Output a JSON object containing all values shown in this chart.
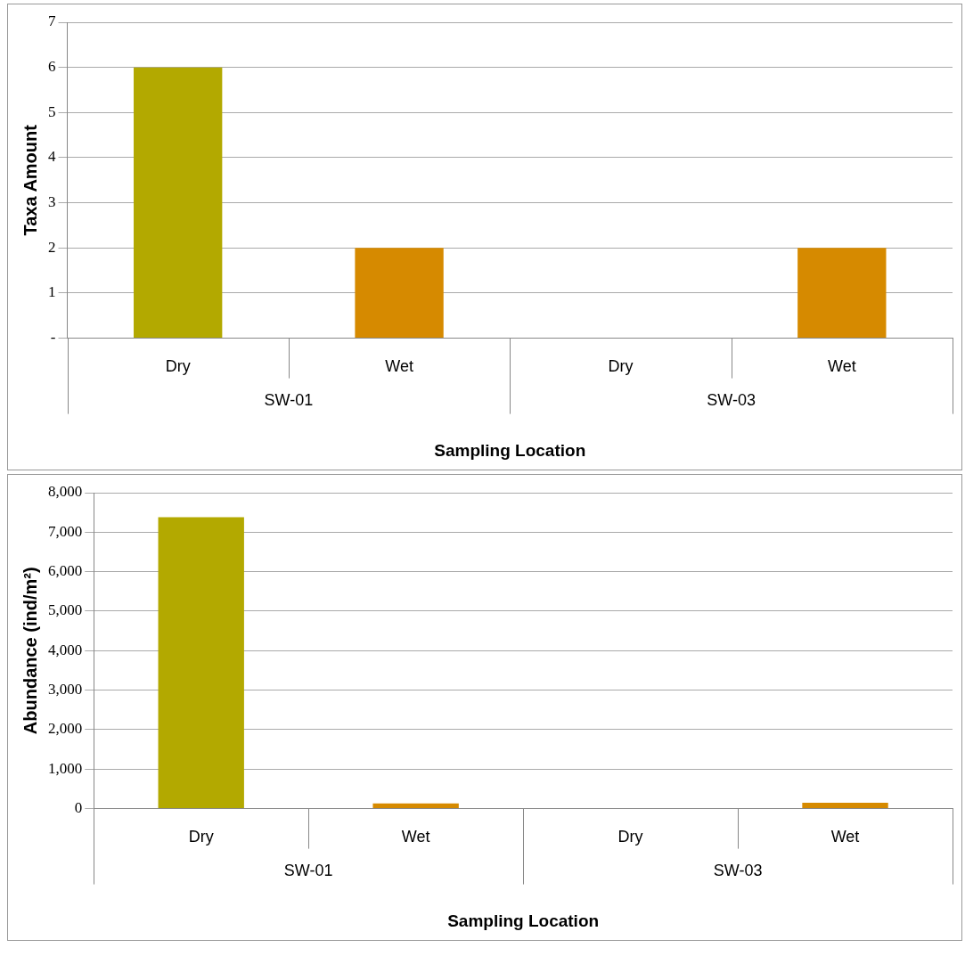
{
  "chart_data": [
    {
      "type": "bar",
      "xlabel": "Sampling Location",
      "ylabel": "Taxa Amount",
      "categories": [
        "Dry",
        "Wet",
        "Dry",
        "Wet"
      ],
      "values": [
        6,
        2,
        0,
        2
      ],
      "colors": [
        "#b3a900",
        "#d68a00",
        "#b3a900",
        "#d68a00"
      ],
      "ylim": [
        0,
        7
      ],
      "yticks": [
        {
          "value": 0,
          "label": "-"
        },
        1,
        2,
        3,
        4,
        5,
        6,
        7
      ],
      "grid": "y",
      "legend": false,
      "annotations": [
        "SW-01",
        "SW-03"
      ]
    },
    {
      "type": "bar",
      "xlabel": "Sampling Location",
      "ylabel": "Abundance (ind/m²)",
      "categories": [
        "Dry",
        "Wet",
        "Dry",
        "Wet"
      ],
      "values": [
        7380,
        130,
        0,
        150
      ],
      "colors": [
        "#b3a900",
        "#d68a00",
        "#b3a900",
        "#d68a00"
      ],
      "ylim": [
        0,
        8000
      ],
      "yticks": [
        {
          "value": 0,
          "label": "0"
        },
        {
          "value": 1000,
          "label": "1,000"
        },
        {
          "value": 2000,
          "label": "2,000"
        },
        {
          "value": 3000,
          "label": "3,000"
        },
        {
          "value": 4000,
          "label": "4,000"
        },
        {
          "value": 5000,
          "label": "5,000"
        },
        {
          "value": 6000,
          "label": "6,000"
        },
        {
          "value": 7000,
          "label": "7,000"
        },
        {
          "value": 8000,
          "label": "8,000"
        }
      ],
      "grid": "y",
      "legend": false,
      "annotations": [
        "SW-01",
        "SW-03"
      ]
    }
  ]
}
